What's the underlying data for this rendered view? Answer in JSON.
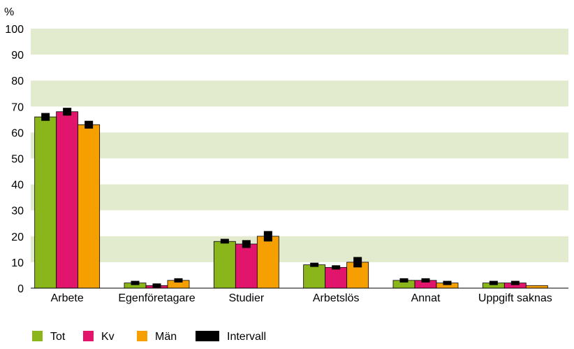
{
  "chart_data": {
    "type": "bar",
    "ylabel": "%",
    "ylim": [
      0,
      100
    ],
    "yticks": [
      "0",
      "10",
      "20",
      "30",
      "40",
      "50",
      "60",
      "70",
      "80",
      "90",
      "100"
    ],
    "categories": [
      "Arbete",
      "Egenföretagare",
      "Studier",
      "Arbetslös",
      "Annat",
      "Uppgift saknas"
    ],
    "series": [
      {
        "name": "Tot",
        "color": "#8ab61c",
        "values": [
          66,
          2,
          18,
          9,
          3,
          2
        ],
        "interval": [
          [
            64.5,
            67.5
          ],
          [
            1.2,
            2.8
          ],
          [
            17.2,
            19.0
          ],
          [
            8.2,
            9.8
          ],
          [
            2.2,
            3.8
          ],
          [
            1.2,
            2.8
          ]
        ]
      },
      {
        "name": "Kv",
        "color": "#e0156b",
        "values": [
          68,
          1,
          17,
          8,
          3,
          2
        ],
        "interval": [
          [
            66.5,
            69.5
          ],
          [
            0.3,
            1.7
          ],
          [
            15.5,
            18.5
          ],
          [
            7.2,
            8.8
          ],
          [
            2.2,
            3.8
          ],
          [
            1.2,
            2.8
          ]
        ]
      },
      {
        "name": "Män",
        "color": "#f5a000",
        "values": [
          63,
          3,
          20,
          10,
          2,
          1
        ],
        "interval": [
          [
            61.5,
            64.5
          ],
          [
            2.2,
            3.8
          ],
          [
            18.0,
            22.0
          ],
          [
            8.0,
            12.0
          ],
          [
            1.2,
            2.8
          ],
          null
        ]
      }
    ],
    "legend": [
      {
        "label": "Tot",
        "color": "#8ab61c"
      },
      {
        "label": "Kv",
        "color": "#e0156b"
      },
      {
        "label": "Män",
        "color": "#f5a000"
      },
      {
        "label": "Intervall",
        "color": "#000000"
      }
    ],
    "band_color": "#e3ebcf",
    "legend_position": "bottom-left"
  }
}
